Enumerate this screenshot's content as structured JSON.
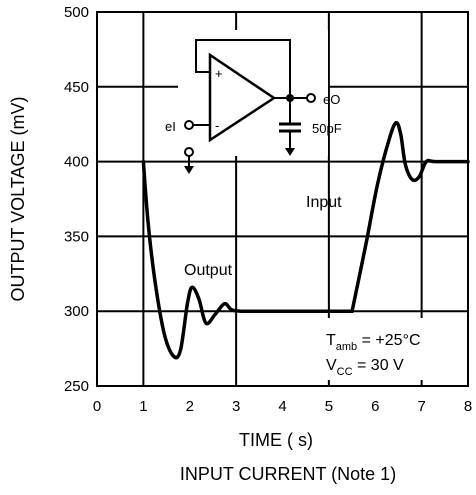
{
  "chart_data": {
    "type": "line",
    "xlabel": "TIME (  s)",
    "ylabel": "OUTPUT VOLTAGE (mV)",
    "caption": "INPUT CURRENT (Note 1)",
    "xlim": [
      0,
      8
    ],
    "ylim": [
      250,
      500
    ],
    "x_ticks": [
      "0",
      "1",
      "2",
      "3",
      "4",
      "5",
      "6",
      "7",
      "8"
    ],
    "y_ticks": [
      "250",
      "300",
      "350",
      "400",
      "450",
      "500"
    ],
    "grid": true,
    "series": [
      {
        "x": [
          1.0,
          1.1,
          1.25,
          1.45,
          1.65,
          1.8,
          1.95,
          2.05,
          2.2,
          2.35,
          2.55,
          2.75,
          2.9,
          3.1,
          3.5,
          4.0,
          5.0,
          5.5
        ],
        "y": [
          400,
          360,
          320,
          285,
          270,
          274,
          305,
          316,
          308,
          292,
          298,
          305,
          301,
          300,
          300,
          300,
          300,
          300
        ]
      },
      {
        "x": [
          5.5,
          5.8,
          6.05,
          6.3,
          6.45,
          6.55,
          6.65,
          6.8,
          6.95,
          7.1,
          7.3,
          8.0
        ],
        "y": [
          300,
          345,
          385,
          415,
          426,
          418,
          398,
          388,
          390,
          400,
          400,
          400
        ]
      }
    ],
    "annotations": {
      "output": "Output",
      "input": "Input",
      "t_amb_main": "T",
      "t_amb_sub": "amb",
      "t_amb_value": " = +25°C",
      "vcc_main": "V",
      "vcc_sub": "CC",
      "vcc_value": " = 30 V"
    },
    "circuit": {
      "plus": "+",
      "minus": "-",
      "input_label": "eI",
      "output_label": "eO",
      "cap_label": "50pF"
    }
  }
}
